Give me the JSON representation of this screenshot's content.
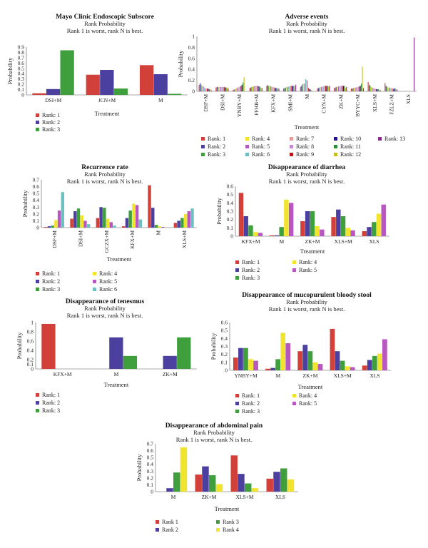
{
  "colors": {
    "rank1": "#d2403a",
    "rank2": "#4b3fa0",
    "rank3": "#3e9f3c",
    "rank4": "#f2e42d",
    "rank5": "#b957c0",
    "rank6": "#6fbfc0",
    "rank7": "#e79a9a",
    "rank8": "#c58ad0",
    "rank9": "#b81818",
    "rank10": "#22178a",
    "rank11": "#2e8b3a",
    "rank12": "#c6c01d",
    "rank13": "#8b2a8b"
  },
  "chart_data": [
    {
      "id": "mayo",
      "type": "bar",
      "title": "Mayo Clinic Endoscopic Subscore",
      "subtitle": "Rank Probability",
      "note": "Rank 1 is worst, rank N is best.",
      "xlabel": "Treatment",
      "ylabel": "Probability",
      "ylim": [
        0,
        0.9
      ],
      "yticks": [
        "0",
        "0.1",
        "0.2",
        "0.3",
        "0.4",
        "0.5",
        "0.6",
        "0.7",
        "0.8",
        "0.9"
      ],
      "categories": [
        "DSI+M",
        "JCN+M",
        "M"
      ],
      "series": [
        {
          "name": "Rank: 1",
          "values": [
            0.03,
            0.38,
            0.56
          ]
        },
        {
          "name": "Rank: 2",
          "values": [
            0.11,
            0.47,
            0.39
          ]
        },
        {
          "name": "Rank: 3",
          "values": [
            0.84,
            0.12,
            0.02
          ]
        }
      ],
      "legend_cols": 1
    },
    {
      "id": "adverse",
      "type": "bar",
      "title": "Adverse events",
      "subtitle": "Rank Probability",
      "note": "Rank 1 is worst, rank N is best.",
      "xlabel": "Treatment",
      "ylabel": "Probability",
      "ylim": [
        0,
        1
      ],
      "yticks": [
        "0",
        "0.2",
        "0.4",
        "0.6",
        "0.8",
        "1"
      ],
      "categories": [
        "DSF+M",
        "DSI+M",
        "YNBY+M",
        "FFHB+M",
        "KFX+M",
        "SMI+M",
        "M",
        "CYN+M",
        "ZK+M",
        "BYYC+M",
        "XLS+M",
        "FZLZ+M",
        "XLS"
      ],
      "series": [
        {
          "name": "Rank: 1",
          "values": [
            0.12,
            0.07,
            0.02,
            0.06,
            0.1,
            0.05,
            0.08,
            0.05,
            0.06,
            0.05,
            0.17,
            0.15,
            0.0
          ]
        },
        {
          "name": "Rank: 2",
          "values": [
            0.15,
            0.08,
            0.03,
            0.07,
            0.11,
            0.06,
            0.1,
            0.06,
            0.07,
            0.05,
            0.12,
            0.1,
            0.0
          ]
        },
        {
          "name": "Rank: 3",
          "values": [
            0.12,
            0.08,
            0.04,
            0.08,
            0.1,
            0.07,
            0.13,
            0.07,
            0.08,
            0.06,
            0.1,
            0.08,
            0.0
          ]
        },
        {
          "name": "Rank: 4",
          "values": [
            0.1,
            0.08,
            0.05,
            0.09,
            0.09,
            0.08,
            0.14,
            0.08,
            0.09,
            0.06,
            0.08,
            0.07,
            0.0
          ]
        },
        {
          "name": "Rank: 5",
          "values": [
            0.09,
            0.08,
            0.06,
            0.09,
            0.09,
            0.08,
            0.14,
            0.08,
            0.09,
            0.07,
            0.07,
            0.07,
            0.0
          ]
        },
        {
          "name": "Rank: 6",
          "values": [
            0.07,
            0.08,
            0.07,
            0.1,
            0.08,
            0.09,
            0.22,
            0.09,
            0.09,
            0.07,
            0.06,
            0.06,
            0.0
          ]
        },
        {
          "name": "Rank: 7",
          "values": [
            0.06,
            0.08,
            0.08,
            0.1,
            0.08,
            0.09,
            0.21,
            0.09,
            0.1,
            0.08,
            0.05,
            0.06,
            0.0
          ]
        },
        {
          "name": "Rank: 8",
          "values": [
            0.05,
            0.08,
            0.09,
            0.1,
            0.07,
            0.1,
            0.2,
            0.1,
            0.1,
            0.08,
            0.05,
            0.05,
            0.0
          ]
        },
        {
          "name": "Rank: 9",
          "values": [
            0.05,
            0.08,
            0.1,
            0.1,
            0.07,
            0.1,
            0.06,
            0.1,
            0.1,
            0.09,
            0.04,
            0.05,
            0.0
          ]
        },
        {
          "name": "Rank: 10",
          "values": [
            0.05,
            0.07,
            0.12,
            0.09,
            0.06,
            0.1,
            0.04,
            0.1,
            0.1,
            0.1,
            0.04,
            0.05,
            0.0
          ]
        },
        {
          "name": "Rank: 11",
          "values": [
            0.04,
            0.07,
            0.16,
            0.08,
            0.06,
            0.1,
            0.03,
            0.1,
            0.1,
            0.14,
            0.04,
            0.05,
            0.0
          ]
        },
        {
          "name": "Rank: 12",
          "values": [
            0.04,
            0.07,
            0.26,
            0.06,
            0.05,
            0.09,
            0.02,
            0.09,
            0.06,
            0.45,
            0.03,
            0.04,
            0.0
          ]
        },
        {
          "name": "Rank: 13",
          "values": [
            0.02,
            0.05,
            0.0,
            0.06,
            0.05,
            0.12,
            0.0,
            0.1,
            0.08,
            0.06,
            0.02,
            0.03,
            0.98
          ]
        }
      ],
      "legend_cols": 5
    },
    {
      "id": "recurrence",
      "type": "bar",
      "title": "Recurrence rate",
      "subtitle": "Rank Probability",
      "note": "Rank 1 is worst, rank N is best.",
      "xlabel": "Treatment",
      "ylabel": "Probability",
      "ylim": [
        0,
        0.7
      ],
      "yticks": [
        "0",
        "0.1",
        "0.2",
        "0.3",
        "0.4",
        "0.5",
        "0.6",
        "0.7"
      ],
      "categories": [
        "DSF+M",
        "DSI+M",
        "GCZX+M",
        "KFX+M",
        "M",
        "XLS+M"
      ],
      "series": [
        {
          "name": "Rank: 1",
          "values": [
            0.01,
            0.13,
            0.14,
            0.02,
            0.62,
            0.07
          ]
        },
        {
          "name": "Rank: 2",
          "values": [
            0.02,
            0.24,
            0.3,
            0.14,
            0.29,
            0.1
          ]
        },
        {
          "name": "Rank: 3",
          "values": [
            0.03,
            0.28,
            0.29,
            0.25,
            0.04,
            0.14
          ]
        },
        {
          "name": "Rank: 4",
          "values": [
            0.11,
            0.18,
            0.13,
            0.35,
            0.02,
            0.2
          ]
        },
        {
          "name": "Rank: 5",
          "values": [
            0.25,
            0.1,
            0.08,
            0.33,
            0.01,
            0.24
          ]
        },
        {
          "name": "Rank: 6",
          "values": [
            0.52,
            0.05,
            0.03,
            0.12,
            0.0,
            0.28
          ]
        }
      ],
      "legend_cols": 2
    },
    {
      "id": "diarrhea",
      "type": "bar",
      "title": "Disappearance of diarrhea",
      "subtitle": "Rank Probability",
      "note": "Rank 1 is worst, rank N is best.",
      "xlabel": "Treatment",
      "ylabel": "Probability",
      "ylim": [
        0,
        0.6
      ],
      "yticks": [
        "0",
        "0.1",
        "0.2",
        "0.3",
        "0.4",
        "0.5",
        "0.6"
      ],
      "categories": [
        "KFX+M",
        "M",
        "ZK+M",
        "XLS+M",
        "XLS"
      ],
      "series": [
        {
          "name": "Rank: 1",
          "values": [
            0.52,
            0.01,
            0.18,
            0.23,
            0.06
          ]
        },
        {
          "name": "Rank: 2",
          "values": [
            0.24,
            0.01,
            0.3,
            0.32,
            0.11
          ]
        },
        {
          "name": "Rank: 3",
          "values": [
            0.13,
            0.11,
            0.3,
            0.24,
            0.17
          ]
        },
        {
          "name": "Rank: 4",
          "values": [
            0.05,
            0.44,
            0.12,
            0.1,
            0.27
          ]
        },
        {
          "name": "Rank: 5",
          "values": [
            0.04,
            0.4,
            0.08,
            0.07,
            0.38
          ]
        }
      ],
      "legend_cols": 2
    },
    {
      "id": "tenesmus",
      "type": "bar",
      "title": "Disappearance of tenesmus",
      "subtitle": "Rank Probability",
      "note": "Rank 1 is worst, rank N is best.",
      "xlabel": "Treatment",
      "ylabel": "Probability",
      "ylim": [
        0,
        1
      ],
      "yticks": [
        "0",
        "0.1",
        "0.2",
        "0.4",
        "0.6",
        "0.8",
        "1"
      ],
      "ytick_values": [
        0,
        0.1,
        0.2,
        0.4,
        0.6,
        0.8,
        1
      ],
      "categories": [
        "KFX+M",
        "M",
        "ZK+M"
      ],
      "series": [
        {
          "name": "Rank: 1",
          "values": [
            0.97,
            0.0,
            0.0
          ]
        },
        {
          "name": "Rank: 2",
          "values": [
            0.0,
            0.68,
            0.28
          ]
        },
        {
          "name": "Rank: 3",
          "values": [
            0.0,
            0.28,
            0.68
          ]
        }
      ],
      "legend_cols": 1
    },
    {
      "id": "stool",
      "type": "bar",
      "title": "Disappearance of mucopurulent bloody stool",
      "subtitle": "Rank Probability",
      "note": "Rank 1 is worst, rank N is best.",
      "xlabel": "Treatment",
      "ylabel": "Probability",
      "ylim": [
        0,
        0.6
      ],
      "yticks": [
        "0",
        "0.1",
        "0.2",
        "0.3",
        "0.4",
        "0.5",
        "0.6"
      ],
      "categories": [
        "YNBY+M",
        "M",
        "ZK+M",
        "XLS+M",
        "XLS"
      ],
      "series": [
        {
          "name": "Rank: 1",
          "values": [
            0.16,
            0.02,
            0.24,
            0.52,
            0.06
          ]
        },
        {
          "name": "Rank: 2",
          "values": [
            0.28,
            0.03,
            0.32,
            0.24,
            0.13
          ]
        },
        {
          "name": "Rank: 3",
          "values": [
            0.28,
            0.14,
            0.24,
            0.12,
            0.18
          ]
        },
        {
          "name": "Rank: 4",
          "values": [
            0.14,
            0.47,
            0.1,
            0.05,
            0.21
          ]
        },
        {
          "name": "Rank: 5",
          "values": [
            0.12,
            0.34,
            0.08,
            0.04,
            0.39
          ]
        }
      ],
      "legend_cols": 2
    },
    {
      "id": "abdominal",
      "type": "bar",
      "title": "Disappearance of abdominal pain",
      "subtitle": "Rank Probability",
      "note": "Rank 1 is worst, rank N is best.",
      "xlabel": "Treatment",
      "ylabel": "Probability",
      "ylim": [
        0,
        0.7
      ],
      "yticks": [
        "0",
        "0.1",
        "0.2",
        "0.3",
        "0.4",
        "0.5",
        "0.6",
        "0.7"
      ],
      "categories": [
        "M",
        "ZK+M",
        "XLS+M",
        "XLS"
      ],
      "series": [
        {
          "name": "Rank 1",
          "values": [
            0.0,
            0.25,
            0.53,
            0.19
          ]
        },
        {
          "name": "Rank 2",
          "values": [
            0.05,
            0.37,
            0.26,
            0.29
          ]
        },
        {
          "name": "Rank 3",
          "values": [
            0.28,
            0.24,
            0.12,
            0.34
          ]
        },
        {
          "name": "Rank 4",
          "values": [
            0.65,
            0.11,
            0.05,
            0.18
          ]
        }
      ],
      "legend_cols": 2
    }
  ]
}
